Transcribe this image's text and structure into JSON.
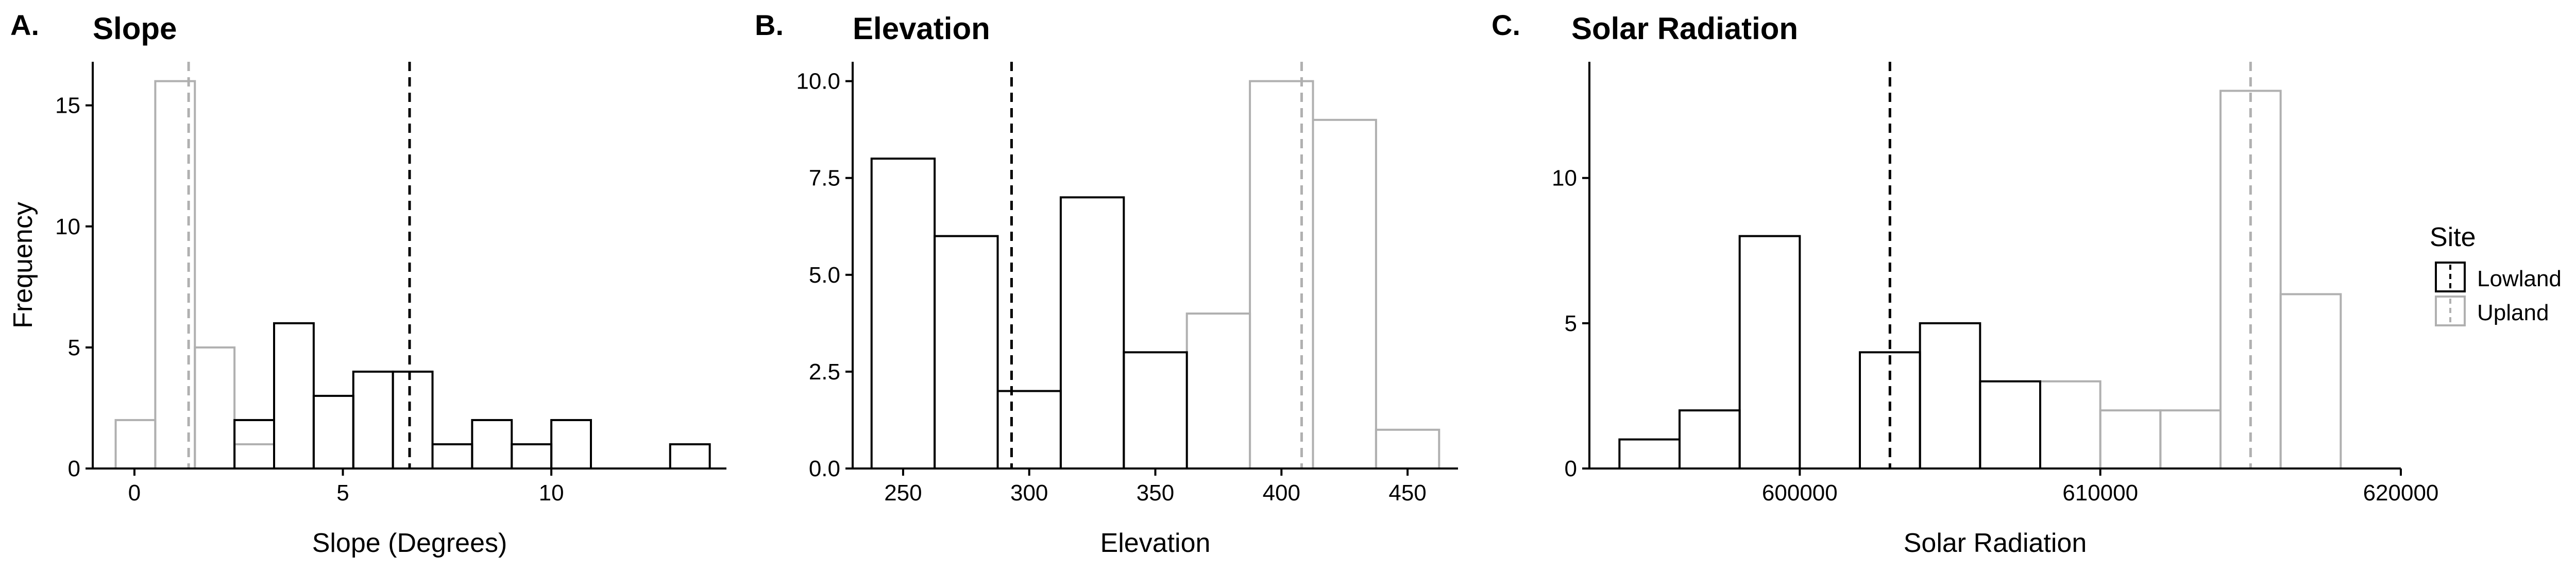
{
  "chart_data": [
    {
      "type": "histogram",
      "panel_tag": "A.",
      "title": "Slope",
      "xlabel": "Slope (Degrees)",
      "ylabel": "Frequency",
      "xlim": [
        -1,
        14.2
      ],
      "ylim": [
        0,
        16.8
      ],
      "xticks": [
        0,
        5,
        10
      ],
      "yticks": [
        0,
        5,
        10,
        15
      ],
      "binwidth": 0.95,
      "series": [
        {
          "name": "Lowland",
          "mean": 6.6,
          "bins": [
            {
              "x0": 2.4,
              "x1": 3.35,
              "count": 2
            },
            {
              "x0": 3.35,
              "x1": 4.3,
              "count": 6
            },
            {
              "x0": 4.3,
              "x1": 5.25,
              "count": 3
            },
            {
              "x0": 5.25,
              "x1": 6.2,
              "count": 4
            },
            {
              "x0": 6.2,
              "x1": 7.15,
              "count": 4
            },
            {
              "x0": 7.15,
              "x1": 8.1,
              "count": 1
            },
            {
              "x0": 8.1,
              "x1": 9.05,
              "count": 2
            },
            {
              "x0": 9.05,
              "x1": 10.0,
              "count": 1
            },
            {
              "x0": 10.0,
              "x1": 10.95,
              "count": 2
            },
            {
              "x0": 10.95,
              "x1": 11.9,
              "count": 0
            },
            {
              "x0": 11.9,
              "x1": 12.85,
              "count": 0
            },
            {
              "x0": 12.85,
              "x1": 13.8,
              "count": 1
            }
          ]
        },
        {
          "name": "Upland",
          "mean": 1.3,
          "bins": [
            {
              "x0": -0.45,
              "x1": 0.5,
              "count": 2
            },
            {
              "x0": 0.5,
              "x1": 1.45,
              "count": 16
            },
            {
              "x0": 1.45,
              "x1": 2.4,
              "count": 5
            },
            {
              "x0": 2.4,
              "x1": 3.35,
              "count": 1
            }
          ]
        }
      ]
    },
    {
      "type": "histogram",
      "panel_tag": "B.",
      "title": "Elevation",
      "xlabel": "Elevation",
      "ylabel": "",
      "xlim": [
        230,
        470
      ],
      "ylim": [
        0,
        10.5
      ],
      "xticks": [
        250,
        300,
        350,
        400,
        450
      ],
      "yticks": [
        0.0,
        2.5,
        5.0,
        7.5,
        10.0
      ],
      "ytick_labels": [
        "0.0",
        "2.5",
        "5.0",
        "7.5",
        "10.0"
      ],
      "binwidth": 25,
      "series": [
        {
          "name": "Lowland",
          "mean": 293,
          "bins": [
            {
              "x0": 237.5,
              "x1": 262.5,
              "count": 8
            },
            {
              "x0": 262.5,
              "x1": 287.5,
              "count": 6
            },
            {
              "x0": 287.5,
              "x1": 312.5,
              "count": 2
            },
            {
              "x0": 312.5,
              "x1": 337.5,
              "count": 7
            },
            {
              "x0": 337.5,
              "x1": 362.5,
              "count": 3
            }
          ]
        },
        {
          "name": "Upland",
          "mean": 408,
          "bins": [
            {
              "x0": 362.5,
              "x1": 387.5,
              "count": 4
            },
            {
              "x0": 387.5,
              "x1": 412.5,
              "count": 10
            },
            {
              "x0": 412.5,
              "x1": 437.5,
              "count": 9
            },
            {
              "x0": 437.5,
              "x1": 462.5,
              "count": 1
            }
          ]
        }
      ]
    },
    {
      "type": "histogram",
      "panel_tag": "C.",
      "title": "Solar Radiation",
      "xlabel": "Solar Radiation",
      "ylabel": "",
      "xlim": [
        593000,
        620000
      ],
      "ylim": [
        0,
        14.0
      ],
      "xticks": [
        600000,
        610000,
        620000
      ],
      "yticks": [
        0,
        5,
        10
      ],
      "binwidth": 2000,
      "series": [
        {
          "name": "Lowland",
          "mean": 603000,
          "bins": [
            {
              "x0": 594000,
              "x1": 596000,
              "count": 1
            },
            {
              "x0": 596000,
              "x1": 598000,
              "count": 2
            },
            {
              "x0": 598000,
              "x1": 600000,
              "count": 8
            },
            {
              "x0": 600000,
              "x1": 602000,
              "count": 0
            },
            {
              "x0": 602000,
              "x1": 604000,
              "count": 4
            },
            {
              "x0": 604000,
              "x1": 606000,
              "count": 5
            },
            {
              "x0": 606000,
              "x1": 608000,
              "count": 3
            }
          ]
        },
        {
          "name": "Upland",
          "mean": 615000,
          "bins": [
            {
              "x0": 608000,
              "x1": 610000,
              "count": 3
            },
            {
              "x0": 610000,
              "x1": 612000,
              "count": 2
            },
            {
              "x0": 612000,
              "x1": 614000,
              "count": 2
            },
            {
              "x0": 614000,
              "x1": 616000,
              "count": 13
            },
            {
              "x0": 616000,
              "x1": 618000,
              "count": 6
            }
          ]
        }
      ]
    }
  ],
  "legend": {
    "title": "Site",
    "placement": "right",
    "items": [
      {
        "label": "Lowland",
        "color": "#000000"
      },
      {
        "label": "Upland",
        "color": "#b0b0b0"
      }
    ]
  },
  "colors": {
    "Lowland": "#000000",
    "Upland": "#b0b0b0"
  }
}
